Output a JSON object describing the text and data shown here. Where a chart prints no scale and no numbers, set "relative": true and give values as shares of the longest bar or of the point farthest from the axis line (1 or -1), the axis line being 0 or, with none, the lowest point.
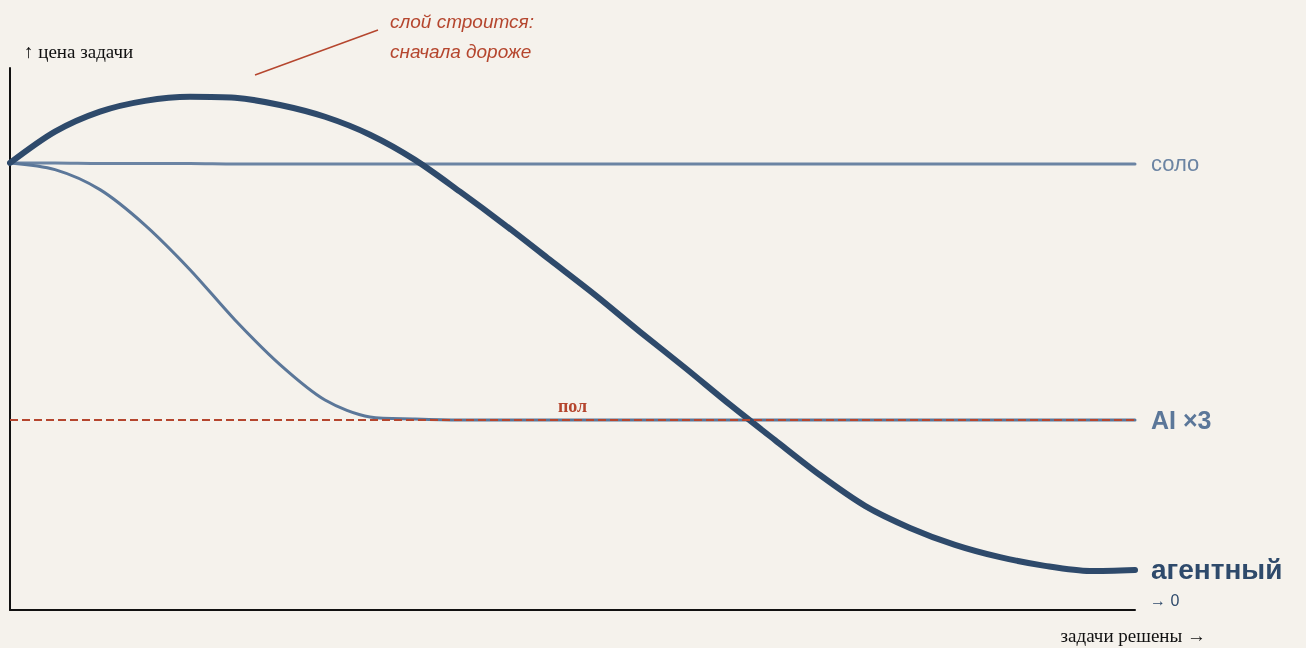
{
  "chart_data": {
    "type": "line",
    "relative": true,
    "xlabel": "задачи решены →",
    "ylabel": "↑ цена задачи",
    "legend": false,
    "grid": false,
    "marker": "none",
    "line_style": "solid",
    "annotations": [
      "слой строится:\nсначала дороже",
      "→ 0"
    ],
    "categories": [
      null,
      null,
      null,
      null,
      null,
      null,
      null,
      null,
      null,
      null,
      null,
      null,
      null,
      null,
      null,
      null,
      null,
      null,
      null,
      null,
      null,
      null,
      null,
      null,
      null,
      null
    ],
    "series": [
      {
        "name": "соло",
        "color": "#6b84a3",
        "values": [
          0.871,
          0.871,
          0.87,
          0.87,
          0.87,
          0.869,
          0.869,
          0.869,
          0.869,
          0.869,
          0.869,
          0.869,
          0.869,
          0.869,
          0.869,
          0.869,
          0.869,
          0.869,
          0.869,
          0.869,
          0.869,
          0.869,
          0.869,
          0.869,
          0.869,
          0.869
        ]
      },
      {
        "name": "AI ×3",
        "color": "#5b7799",
        "values": [
          0.871,
          0.858,
          0.819,
          0.75,
          0.663,
          0.565,
          0.478,
          0.409,
          0.376,
          0.372,
          0.37,
          0.37,
          0.37,
          0.37,
          0.37,
          0.37,
          0.37,
          0.37,
          0.37,
          0.37,
          0.37,
          0.37,
          0.37,
          0.37,
          0.37,
          0.37
        ]
      },
      {
        "name": "агентный",
        "color": "#2e4a6b",
        "values": [
          0.871,
          0.932,
          0.971,
          0.992,
          1.0,
          0.998,
          0.984,
          0.961,
          0.926,
          0.877,
          0.815,
          0.75,
          0.682,
          0.614,
          0.542,
          0.472,
          0.4,
          0.331,
          0.263,
          0.203,
          0.16,
          0.127,
          0.103,
          0.086,
          0.076,
          0.078
        ]
      }
    ],
    "ref_lines": [
      {
        "axis": "y",
        "value": 0.37,
        "label": "пол",
        "color": "#b5462e",
        "line_style": "dashed"
      }
    ]
  }
}
